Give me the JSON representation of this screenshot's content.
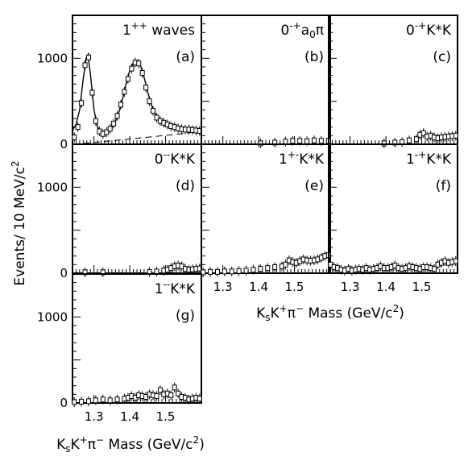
{
  "chart_data": {
    "type": "scatter",
    "y_axis_title": "Events/ 10 MeV/c²",
    "x_axis_title": "KsK⁺π⁻ Mass (GeV/c²)",
    "xlim": [
      1.24,
      1.6
    ],
    "ylim": [
      0,
      1500
    ],
    "y_tick_labels": [
      "0",
      "1000"
    ],
    "x_tick_labels": [
      "1.3",
      "1.4",
      "1.5"
    ],
    "panels": [
      {
        "id": "a",
        "tag": "(a)",
        "title": {
          "jp": "1",
          "jp_sup": "++",
          "name": "waves"
        },
        "points": [
          [
            1.245,
            80
          ],
          [
            1.255,
            200
          ],
          [
            1.265,
            480
          ],
          [
            1.275,
            920
          ],
          [
            1.285,
            1010
          ],
          [
            1.295,
            600
          ],
          [
            1.305,
            270
          ],
          [
            1.315,
            150
          ],
          [
            1.325,
            120
          ],
          [
            1.335,
            140
          ],
          [
            1.345,
            180
          ],
          [
            1.355,
            240
          ],
          [
            1.365,
            330
          ],
          [
            1.375,
            460
          ],
          [
            1.385,
            610
          ],
          [
            1.395,
            760
          ],
          [
            1.405,
            880
          ],
          [
            1.415,
            950
          ],
          [
            1.425,
            940
          ],
          [
            1.435,
            830
          ],
          [
            1.445,
            660
          ],
          [
            1.455,
            500
          ],
          [
            1.465,
            390
          ],
          [
            1.475,
            310
          ],
          [
            1.485,
            270
          ],
          [
            1.495,
            250
          ],
          [
            1.505,
            230
          ],
          [
            1.515,
            210
          ],
          [
            1.525,
            200
          ],
          [
            1.535,
            185
          ],
          [
            1.545,
            175
          ],
          [
            1.555,
            170
          ],
          [
            1.565,
            170
          ],
          [
            1.575,
            165
          ],
          [
            1.585,
            160
          ],
          [
            1.595,
            155
          ]
        ],
        "fit_curve": [
          [
            1.24,
            160
          ],
          [
            1.25,
            230
          ],
          [
            1.26,
            400
          ],
          [
            1.27,
            760
          ],
          [
            1.278,
            1000
          ],
          [
            1.283,
            1040
          ],
          [
            1.29,
            820
          ],
          [
            1.3,
            400
          ],
          [
            1.31,
            200
          ],
          [
            1.32,
            130
          ],
          [
            1.33,
            120
          ],
          [
            1.34,
            145
          ],
          [
            1.35,
            195
          ],
          [
            1.36,
            270
          ],
          [
            1.37,
            380
          ],
          [
            1.38,
            530
          ],
          [
            1.39,
            710
          ],
          [
            1.4,
            860
          ],
          [
            1.41,
            950
          ],
          [
            1.42,
            970
          ],
          [
            1.43,
            920
          ],
          [
            1.44,
            780
          ],
          [
            1.45,
            610
          ],
          [
            1.46,
            460
          ],
          [
            1.47,
            360
          ],
          [
            1.48,
            300
          ],
          [
            1.49,
            265
          ],
          [
            1.5,
            240
          ],
          [
            1.52,
            210
          ],
          [
            1.54,
            190
          ],
          [
            1.56,
            180
          ],
          [
            1.58,
            175
          ],
          [
            1.6,
            175
          ]
        ],
        "background": [
          [
            1.24,
            0
          ],
          [
            1.3,
            20
          ],
          [
            1.36,
            45
          ],
          [
            1.42,
            70
          ],
          [
            1.48,
            95
          ],
          [
            1.54,
            120
          ],
          [
            1.6,
            150
          ]
        ]
      },
      {
        "id": "b",
        "tag": "(b)",
        "title": {
          "jp": "0",
          "jp_sup": "-+",
          "name": "a",
          "name_sub": "0",
          "name_tail": "π"
        },
        "points": [
          [
            1.405,
            10
          ],
          [
            1.445,
            20
          ],
          [
            1.475,
            30
          ],
          [
            1.495,
            40
          ],
          [
            1.515,
            40
          ],
          [
            1.535,
            35
          ],
          [
            1.555,
            45
          ],
          [
            1.575,
            40
          ],
          [
            1.595,
            40
          ]
        ]
      },
      {
        "id": "c",
        "tag": "(c)",
        "title": {
          "jp": "0",
          "jp_sup": "-+",
          "name": "K*K"
        },
        "points": [
          [
            1.395,
            10
          ],
          [
            1.425,
            20
          ],
          [
            1.445,
            25
          ],
          [
            1.465,
            45
          ],
          [
            1.485,
            60
          ],
          [
            1.495,
            110
          ],
          [
            1.505,
            130
          ],
          [
            1.515,
            90
          ],
          [
            1.525,
            100
          ],
          [
            1.535,
            80
          ],
          [
            1.545,
            70
          ],
          [
            1.555,
            80
          ],
          [
            1.565,
            85
          ],
          [
            1.575,
            90
          ],
          [
            1.585,
            95
          ],
          [
            1.595,
            100
          ]
        ]
      },
      {
        "id": "d",
        "tag": "(d)",
        "title": {
          "jp": "0",
          "jp_sup": "--",
          "name": "K*K"
        },
        "points": [
          [
            1.275,
            10
          ],
          [
            1.325,
            10
          ],
          [
            1.455,
            15
          ],
          [
            1.475,
            20
          ],
          [
            1.495,
            30
          ],
          [
            1.505,
            40
          ],
          [
            1.515,
            60
          ],
          [
            1.525,
            80
          ],
          [
            1.535,
            90
          ],
          [
            1.545,
            80
          ],
          [
            1.555,
            50
          ],
          [
            1.565,
            40
          ],
          [
            1.575,
            45
          ],
          [
            1.585,
            50
          ],
          [
            1.595,
            55
          ]
        ]
      },
      {
        "id": "e",
        "tag": "(e)",
        "title": {
          "jp": "1",
          "jp_sup": "+-",
          "name": "K*K"
        },
        "points": [
          [
            1.245,
            10
          ],
          [
            1.265,
            15
          ],
          [
            1.285,
            15
          ],
          [
            1.305,
            20
          ],
          [
            1.325,
            20
          ],
          [
            1.345,
            25
          ],
          [
            1.365,
            30
          ],
          [
            1.385,
            40
          ],
          [
            1.405,
            50
          ],
          [
            1.425,
            60
          ],
          [
            1.445,
            70
          ],
          [
            1.465,
            80
          ],
          [
            1.475,
            100
          ],
          [
            1.485,
            150
          ],
          [
            1.495,
            130
          ],
          [
            1.505,
            120
          ],
          [
            1.515,
            140
          ],
          [
            1.525,
            160
          ],
          [
            1.535,
            150
          ],
          [
            1.545,
            145
          ],
          [
            1.555,
            150
          ],
          [
            1.565,
            160
          ],
          [
            1.575,
            180
          ],
          [
            1.585,
            200
          ],
          [
            1.595,
            210
          ]
        ]
      },
      {
        "id": "f",
        "tag": "(f)",
        "title": {
          "jp": "1",
          "jp_sup": "-+",
          "name": "K*K"
        },
        "points": [
          [
            1.245,
            100
          ],
          [
            1.255,
            70
          ],
          [
            1.265,
            60
          ],
          [
            1.275,
            40
          ],
          [
            1.285,
            30
          ],
          [
            1.295,
            50
          ],
          [
            1.305,
            30
          ],
          [
            1.315,
            40
          ],
          [
            1.325,
            50
          ],
          [
            1.335,
            40
          ],
          [
            1.345,
            60
          ],
          [
            1.355,
            40
          ],
          [
            1.365,
            50
          ],
          [
            1.375,
            60
          ],
          [
            1.385,
            80
          ],
          [
            1.395,
            60
          ],
          [
            1.405,
            60
          ],
          [
            1.415,
            70
          ],
          [
            1.425,
            90
          ],
          [
            1.435,
            60
          ],
          [
            1.445,
            50
          ],
          [
            1.455,
            60
          ],
          [
            1.465,
            80
          ],
          [
            1.475,
            70
          ],
          [
            1.485,
            60
          ],
          [
            1.495,
            50
          ],
          [
            1.505,
            70
          ],
          [
            1.515,
            70
          ],
          [
            1.525,
            60
          ],
          [
            1.535,
            50
          ],
          [
            1.545,
            100
          ],
          [
            1.555,
            120
          ],
          [
            1.565,
            140
          ],
          [
            1.575,
            120
          ],
          [
            1.585,
            130
          ],
          [
            1.595,
            140
          ]
        ]
      },
      {
        "id": "g",
        "tag": "(g)",
        "title": {
          "jp": "1",
          "jp_sup": "--",
          "name": "K*K"
        },
        "points": [
          [
            1.245,
            10
          ],
          [
            1.265,
            15
          ],
          [
            1.285,
            20
          ],
          [
            1.305,
            30
          ],
          [
            1.325,
            40
          ],
          [
            1.345,
            30
          ],
          [
            1.365,
            40
          ],
          [
            1.385,
            50
          ],
          [
            1.395,
            60
          ],
          [
            1.405,
            80
          ],
          [
            1.415,
            60
          ],
          [
            1.425,
            90
          ],
          [
            1.435,
            80
          ],
          [
            1.445,
            70
          ],
          [
            1.455,
            100
          ],
          [
            1.465,
            90
          ],
          [
            1.475,
            80
          ],
          [
            1.485,
            150
          ],
          [
            1.495,
            100
          ],
          [
            1.505,
            110
          ],
          [
            1.515,
            90
          ],
          [
            1.525,
            180
          ],
          [
            1.535,
            110
          ],
          [
            1.545,
            70
          ],
          [
            1.555,
            60
          ],
          [
            1.565,
            40
          ],
          [
            1.575,
            50
          ],
          [
            1.585,
            60
          ],
          [
            1.595,
            50
          ]
        ]
      }
    ]
  }
}
